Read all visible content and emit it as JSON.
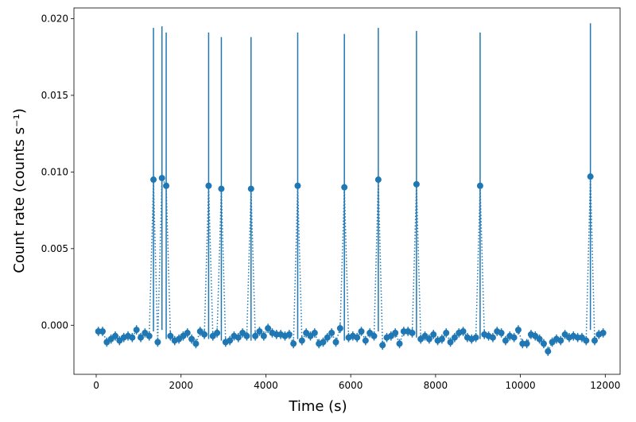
{
  "chart_data": {
    "type": "errorbar",
    "xlabel": "Time (s)",
    "ylabel": "Count rate (counts s⁻¹)",
    "x": [
      50,
      150,
      250,
      350,
      450,
      550,
      650,
      750,
      850,
      950,
      1050,
      1150,
      1250,
      1350,
      1450,
      1550,
      1650,
      1750,
      1850,
      1950,
      2050,
      2150,
      2250,
      2350,
      2450,
      2550,
      2650,
      2750,
      2850,
      2950,
      3050,
      3150,
      3250,
      3350,
      3450,
      3550,
      3650,
      3750,
      3850,
      3950,
      4050,
      4150,
      4250,
      4350,
      4450,
      4550,
      4650,
      4750,
      4850,
      4950,
      5050,
      5150,
      5250,
      5350,
      5450,
      5550,
      5650,
      5750,
      5850,
      5950,
      6050,
      6150,
      6250,
      6350,
      6450,
      6550,
      6650,
      6750,
      6850,
      6950,
      7050,
      7150,
      7250,
      7350,
      7450,
      7550,
      7650,
      7750,
      7850,
      7950,
      8050,
      8150,
      8250,
      8350,
      8450,
      8550,
      8650,
      8750,
      8850,
      8950,
      9050,
      9150,
      9250,
      9350,
      9450,
      9550,
      9650,
      9750,
      9850,
      9950,
      10050,
      10150,
      10250,
      10350,
      10450,
      10550,
      10650,
      10750,
      10850,
      10950,
      11050,
      11150,
      11250,
      11350,
      11450,
      11550,
      11650,
      11750,
      11850,
      11950
    ],
    "series": [
      {
        "color": "#1f77b4",
        "values": [
          -0.0004,
          -0.0004,
          -0.0011,
          -0.0009,
          -0.0007,
          -0.001,
          -0.0008,
          -0.0007,
          -0.0008,
          -0.0003,
          -0.0008,
          -0.0005,
          -0.0007,
          0.0095,
          -0.0011,
          0.0096,
          0.0091,
          -0.0007,
          -0.001,
          -0.0009,
          -0.0007,
          -0.0005,
          -0.0009,
          -0.0012,
          -0.0004,
          -0.0006,
          0.0091,
          -0.0007,
          -0.0005,
          0.0089,
          -0.0011,
          -0.001,
          -0.0007,
          -0.0008,
          -0.0005,
          -0.0007,
          0.0089,
          -0.0007,
          -0.0004,
          -0.0007,
          -0.0002,
          -0.0005,
          -0.0006,
          -0.0006,
          -0.0007,
          -0.0006,
          -0.0012,
          0.0091,
          -0.001,
          -0.0005,
          -0.0007,
          -0.0005,
          -0.0012,
          -0.0011,
          -0.0008,
          -0.0005,
          -0.0011,
          -0.0002,
          0.009,
          -0.0008,
          -0.0007,
          -0.0008,
          -0.0004,
          -0.001,
          -0.0005,
          -0.0007,
          0.0095,
          -0.0013,
          -0.0008,
          -0.0007,
          -0.0005,
          -0.0012,
          -0.0004,
          -0.0004,
          -0.0005,
          0.0092,
          -0.0009,
          -0.0007,
          -0.0009,
          -0.0006,
          -0.001,
          -0.0009,
          -0.0005,
          -0.0011,
          -0.0008,
          -0.0005,
          -0.0004,
          -0.0008,
          -0.0009,
          -0.0008,
          0.0091,
          -0.0006,
          -0.0007,
          -0.0008,
          -0.0004,
          -0.0005,
          -0.001,
          -0.0007,
          -0.0008,
          -0.0003,
          -0.0012,
          -0.0012,
          -0.0006,
          -0.0007,
          -0.0009,
          -0.0012,
          -0.0017,
          -0.0011,
          -0.0009,
          -0.001,
          -0.0006,
          -0.0008,
          -0.0007,
          -0.0008,
          -0.0008,
          -0.001,
          0.0097,
          -0.001,
          -0.0006,
          -0.0005
        ],
        "errors": [
          0.0003,
          0.0003,
          0.0003,
          0.0003,
          0.0003,
          0.0003,
          0.0003,
          0.0003,
          0.0003,
          0.0003,
          0.0003,
          0.0003,
          0.0003,
          0.0099,
          0.0003,
          0.0099,
          0.01,
          0.0003,
          0.0003,
          0.0003,
          0.0003,
          0.0003,
          0.0003,
          0.0003,
          0.0003,
          0.0003,
          0.01,
          0.0003,
          0.0003,
          0.0099,
          0.0003,
          0.0003,
          0.0003,
          0.0003,
          0.0003,
          0.0003,
          0.0099,
          0.0003,
          0.0003,
          0.0003,
          0.0003,
          0.0003,
          0.0003,
          0.0003,
          0.0003,
          0.0003,
          0.0003,
          0.01,
          0.0003,
          0.0003,
          0.0003,
          0.0003,
          0.0003,
          0.0003,
          0.0003,
          0.0003,
          0.0003,
          0.0003,
          0.01,
          0.0003,
          0.0003,
          0.0003,
          0.0003,
          0.0003,
          0.0003,
          0.0003,
          0.0099,
          0.0003,
          0.0003,
          0.0003,
          0.0003,
          0.0003,
          0.0003,
          0.0003,
          0.0003,
          0.01,
          0.0003,
          0.0003,
          0.0003,
          0.0003,
          0.0003,
          0.0003,
          0.0003,
          0.0003,
          0.0003,
          0.0003,
          0.0003,
          0.0003,
          0.0003,
          0.0003,
          0.01,
          0.0003,
          0.0003,
          0.0003,
          0.0003,
          0.0003,
          0.0003,
          0.0003,
          0.0003,
          0.0003,
          0.0003,
          0.0003,
          0.0003,
          0.0003,
          0.0003,
          0.0003,
          0.0003,
          0.0003,
          0.0003,
          0.0003,
          0.0003,
          0.0003,
          0.0003,
          0.0003,
          0.0003,
          0.0003,
          0.01,
          0.0003,
          0.0003,
          0.0003
        ]
      }
    ],
    "xlim": [
      -525,
      12350
    ],
    "ylim": [
      -0.0032,
      0.0207
    ],
    "xticks": [
      0,
      2000,
      4000,
      6000,
      8000,
      10000,
      12000
    ],
    "yticks": [
      {
        "value": 0,
        "label": "0.000"
      },
      {
        "value": 0.005,
        "label": "0.005"
      },
      {
        "value": 0.01,
        "label": "0.010"
      },
      {
        "value": 0.015,
        "label": "0.015"
      },
      {
        "value": 0.02,
        "label": "0.020"
      }
    ]
  }
}
